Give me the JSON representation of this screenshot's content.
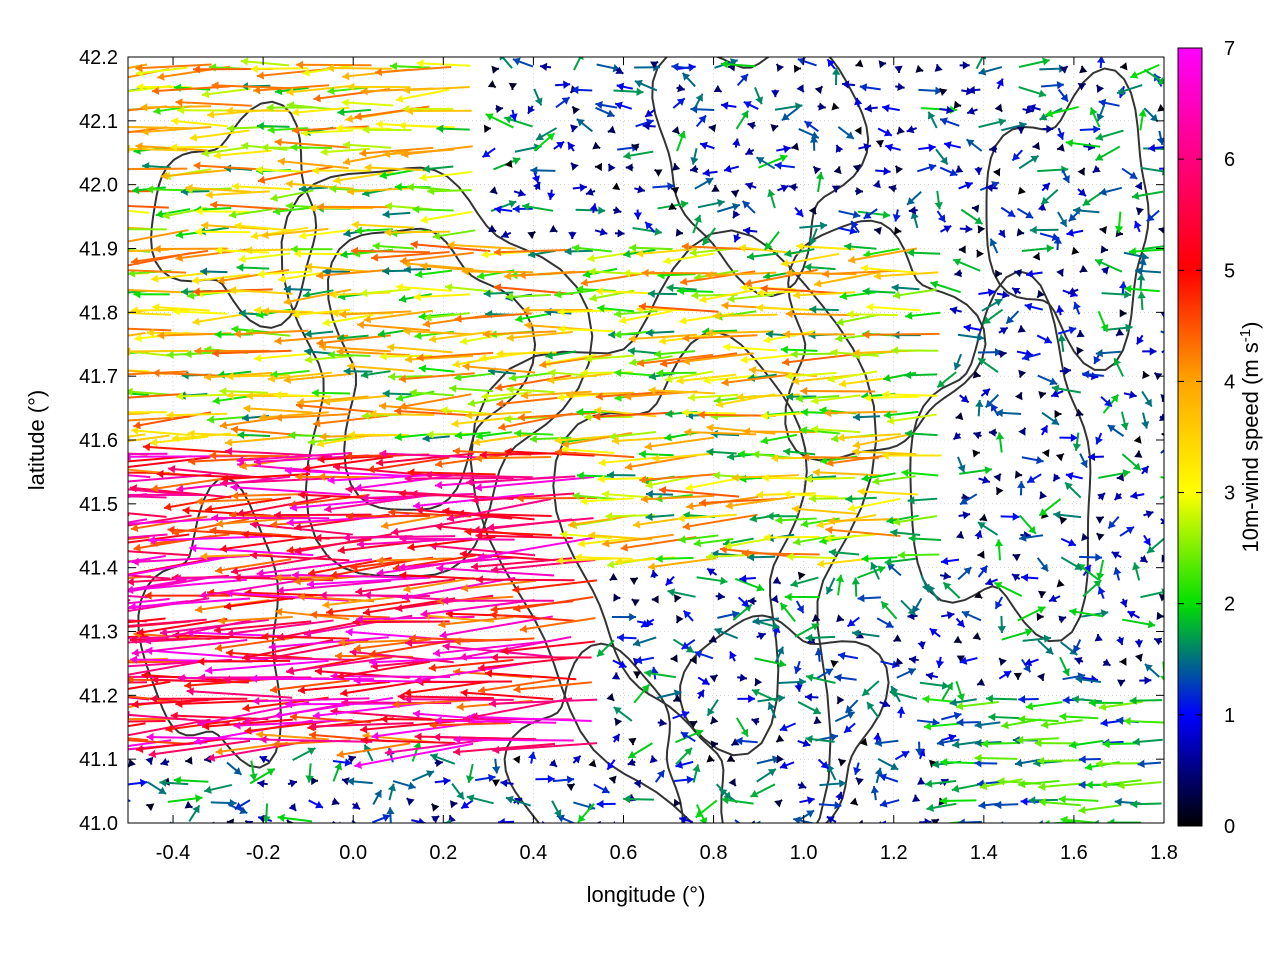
{
  "chart_data": {
    "type": "quiver",
    "xlabel": "longitude (°)",
    "ylabel": "latitude (°)",
    "xlim": [
      -0.5,
      1.8
    ],
    "ylim": [
      41.0,
      42.2
    ],
    "x_ticks": [
      "-0.4",
      "-0.2",
      "0.0",
      "0.2",
      "0.4",
      "0.6",
      "0.8",
      "1.0",
      "1.2",
      "1.4",
      "1.6",
      "1.8"
    ],
    "y_ticks": [
      "41.0",
      "41.1",
      "41.2",
      "41.3",
      "41.4",
      "41.5",
      "41.6",
      "41.7",
      "41.8",
      "41.9",
      "42.0",
      "42.1",
      "42.2"
    ],
    "grid": true,
    "colorbar": {
      "label_main": "10m-wind speed (m s",
      "label_sup": "-1",
      "label_end": ")",
      "ticks": [
        "0",
        "1",
        "2",
        "3",
        "4",
        "5",
        "6",
        "7"
      ],
      "range": [
        0,
        7
      ],
      "colors": [
        "#000000",
        "#0000ff",
        "#00e000",
        "#ffff00",
        "#ffa500",
        "#ff0000",
        "#ff00ff"
      ]
    },
    "wind_regions": [
      {
        "lon": [
          -0.5,
          0.55
        ],
        "lat": [
          41.1,
          41.6
        ],
        "speed": [
          4.0,
          7.0
        ],
        "direction": "west",
        "note": "strong westward jet"
      },
      {
        "lon": [
          -0.5,
          0.3
        ],
        "lat": [
          41.6,
          42.2
        ],
        "speed": [
          1.5,
          4.5
        ],
        "direction": "west"
      },
      {
        "lon": [
          0.3,
          1.3
        ],
        "lat": [
          41.4,
          41.9
        ],
        "speed": [
          1.5,
          4.5
        ],
        "direction": "west"
      },
      {
        "lon": [
          1.3,
          1.8
        ],
        "lat": [
          41.0,
          41.2
        ],
        "speed": [
          1.0,
          2.5
        ],
        "direction": "west"
      },
      {
        "lon": [
          0.5,
          1.8
        ],
        "lat": [
          41.2,
          42.2
        ],
        "speed": [
          0.0,
          2.0
        ],
        "direction": "variable"
      }
    ]
  }
}
